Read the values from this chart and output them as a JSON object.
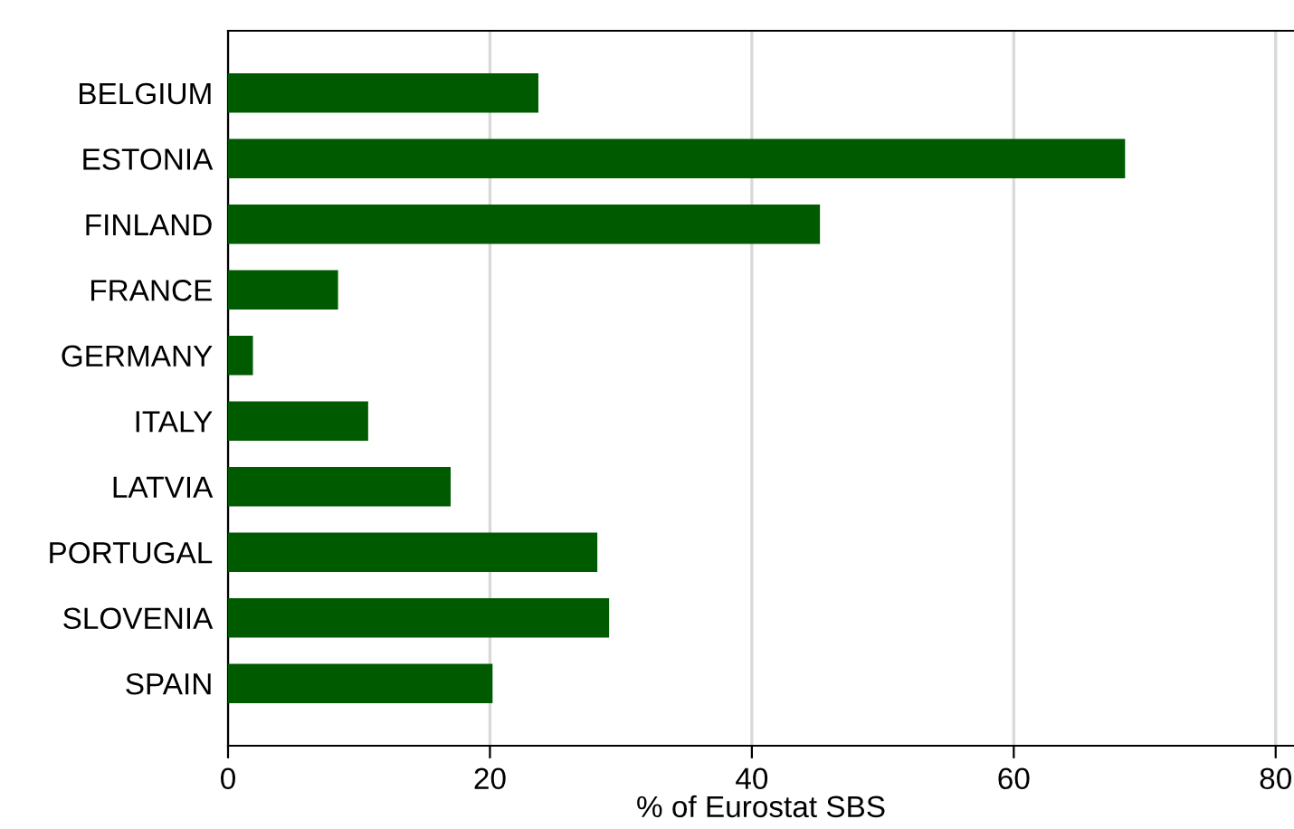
{
  "chart_data": {
    "type": "bar",
    "orientation": "horizontal",
    "xlabel": "% of Eurostat SBS",
    "categories": [
      "BELGIUM",
      "ESTONIA",
      "FINLAND",
      "FRANCE",
      "GERMANY",
      "ITALY",
      "LATVIA",
      "PORTUGAL",
      "SLOVENIA",
      "SPAIN"
    ],
    "values": [
      23.7,
      68.5,
      45.2,
      8.4,
      1.9,
      10.7,
      17.0,
      28.2,
      29.1,
      20.2
    ],
    "color": "#005a00",
    "xlim": [
      0,
      81.4
    ],
    "xticks": [
      0,
      20,
      40,
      60,
      80
    ],
    "grid": "x",
    "legend": false
  }
}
